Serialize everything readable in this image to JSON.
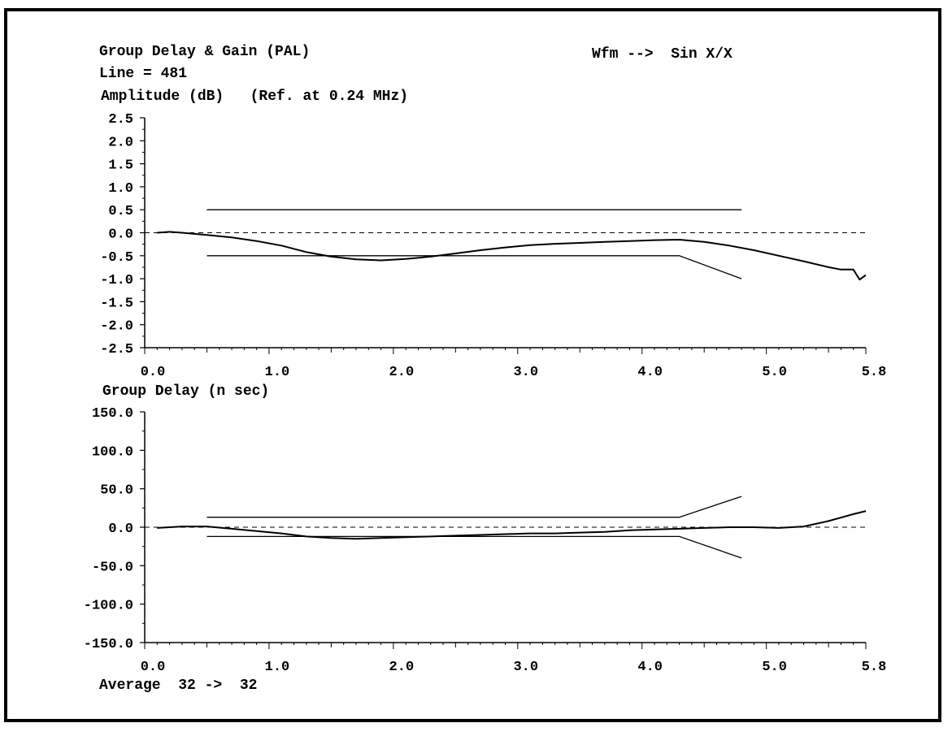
{
  "header": {
    "title": "Group Delay & Gain (PAL)",
    "line": "Line = 481",
    "waveform": "Wfm -->  Sin X/X"
  },
  "footer": {
    "average": "Average  32 ->  32"
  },
  "chart_data": [
    {
      "type": "line",
      "title": "Group Delay & Gain (PAL)",
      "ylabel": "Amplitude (dB)   (Ref. at 0.24 MHz)",
      "xlabel": "",
      "xlim": [
        0.0,
        5.8
      ],
      "ylim": [
        -2.5,
        2.5
      ],
      "x_ticks": [
        "0.0",
        "1.0",
        "2.0",
        "3.0",
        "4.0",
        "5.0",
        "5.8"
      ],
      "y_ticks": [
        "2.5",
        "2.0",
        "1.5",
        "1.0",
        "0.5",
        "0.0",
        "-0.5",
        "-1.0",
        "-1.5",
        "-2.0",
        "-2.5"
      ],
      "reference_line": 0.0,
      "limits": [
        {
          "x": [
            0.5,
            4.8
          ],
          "y": [
            0.5,
            0.5
          ]
        },
        {
          "x": [
            0.5,
            4.3,
            4.8
          ],
          "y": [
            -0.5,
            -0.5,
            -1.0
          ]
        }
      ],
      "series": [
        {
          "x": [
            0.1,
            0.2,
            0.3,
            0.5,
            0.7,
            0.9,
            1.1,
            1.3,
            1.5,
            1.7,
            1.9,
            2.1,
            2.3,
            2.5,
            2.7,
            2.9,
            3.1,
            3.3,
            3.5,
            3.7,
            3.9,
            4.1,
            4.3,
            4.5,
            4.7,
            4.9,
            5.1,
            5.3,
            5.5,
            5.6,
            5.7,
            5.75,
            5.8
          ],
          "y": [
            0.0,
            0.02,
            0.0,
            -0.05,
            -0.1,
            -0.18,
            -0.28,
            -0.42,
            -0.52,
            -0.58,
            -0.6,
            -0.57,
            -0.52,
            -0.45,
            -0.38,
            -0.32,
            -0.27,
            -0.24,
            -0.22,
            -0.2,
            -0.18,
            -0.16,
            -0.15,
            -0.2,
            -0.28,
            -0.38,
            -0.5,
            -0.62,
            -0.75,
            -0.8,
            -0.8,
            -1.02,
            -0.92
          ]
        }
      ]
    },
    {
      "type": "line",
      "ylabel": "Group Delay (n sec)",
      "xlabel": "",
      "xlim": [
        0.0,
        5.8
      ],
      "ylim": [
        -150.0,
        150.0
      ],
      "x_ticks": [
        "0.0",
        "1.0",
        "2.0",
        "3.0",
        "4.0",
        "5.0",
        "5.8"
      ],
      "y_ticks": [
        "150.0",
        "100.0",
        "50.0",
        "0.0",
        "-50.0",
        "-100.0",
        "-150.0"
      ],
      "reference_line": 0.0,
      "limits": [
        {
          "x": [
            0.5,
            4.3,
            4.8
          ],
          "y": [
            13,
            13,
            40
          ]
        },
        {
          "x": [
            0.5,
            4.3,
            4.8
          ],
          "y": [
            -12,
            -12,
            -40
          ]
        }
      ],
      "series": [
        {
          "x": [
            0.1,
            0.3,
            0.5,
            0.7,
            0.9,
            1.1,
            1.3,
            1.5,
            1.7,
            1.9,
            2.1,
            2.3,
            2.5,
            2.7,
            2.9,
            3.1,
            3.3,
            3.5,
            3.7,
            3.9,
            4.1,
            4.3,
            4.5,
            4.7,
            4.9,
            5.1,
            5.3,
            5.5,
            5.7,
            5.8
          ],
          "y": [
            -1,
            1,
            1,
            -2,
            -5,
            -8,
            -12,
            -14,
            -15,
            -14,
            -13,
            -12,
            -11,
            -10,
            -9,
            -8,
            -8,
            -7,
            -6,
            -4,
            -3,
            -2,
            -1,
            0,
            0,
            -1,
            1,
            8,
            17,
            21
          ]
        }
      ]
    }
  ]
}
